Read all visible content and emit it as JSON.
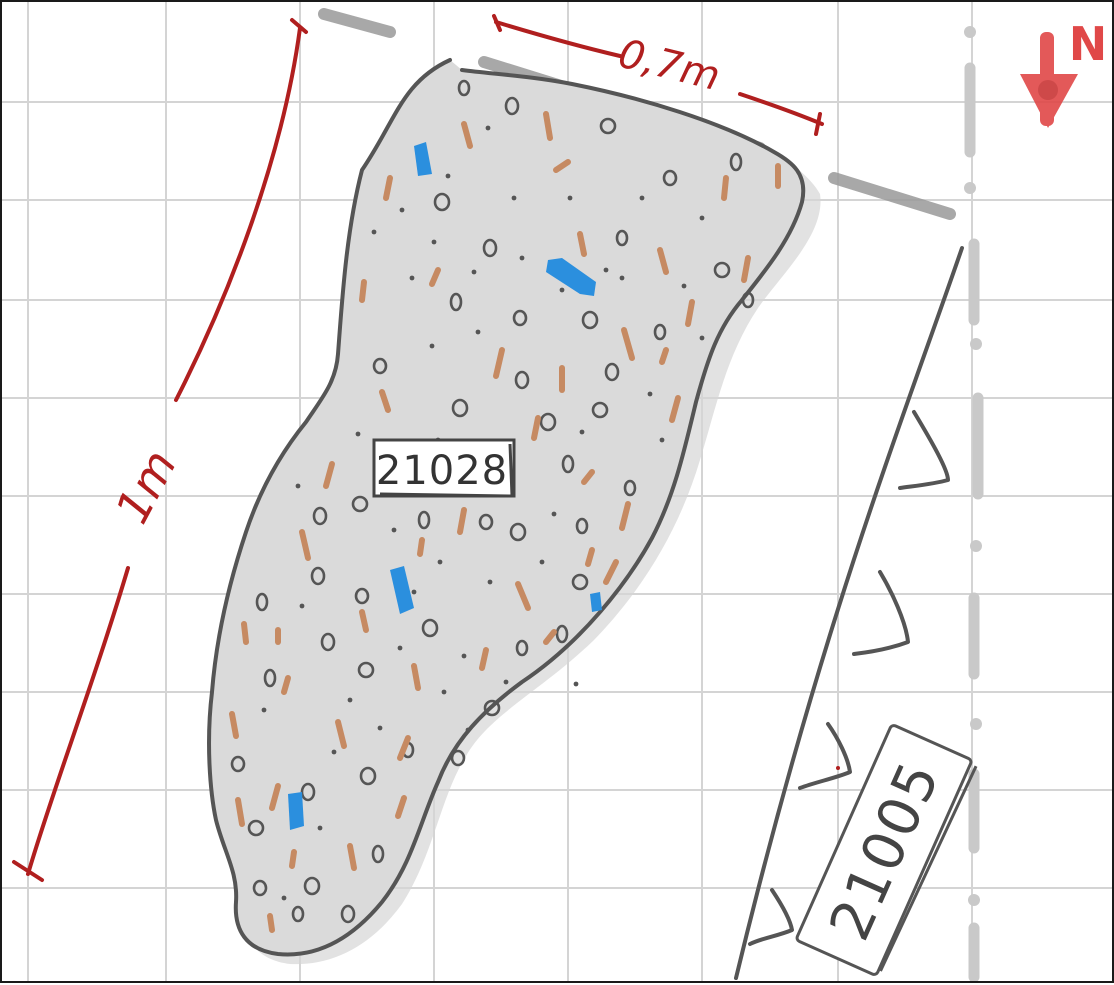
{
  "sketch": {
    "feature_a": {
      "label": "21028"
    },
    "feature_b": {
      "label": "21005"
    },
    "dimensions": {
      "length": "1m",
      "width": "0,7m"
    },
    "north_arrow": {
      "label": "N"
    },
    "colors": {
      "grid": "#d4d4d4",
      "outline": "#555555",
      "fill": "#d9d9d9",
      "measure": "#b01f1f",
      "brick": "#c68a62",
      "blue_inclusion": "#2b8fde",
      "north": "#e04848"
    }
  }
}
